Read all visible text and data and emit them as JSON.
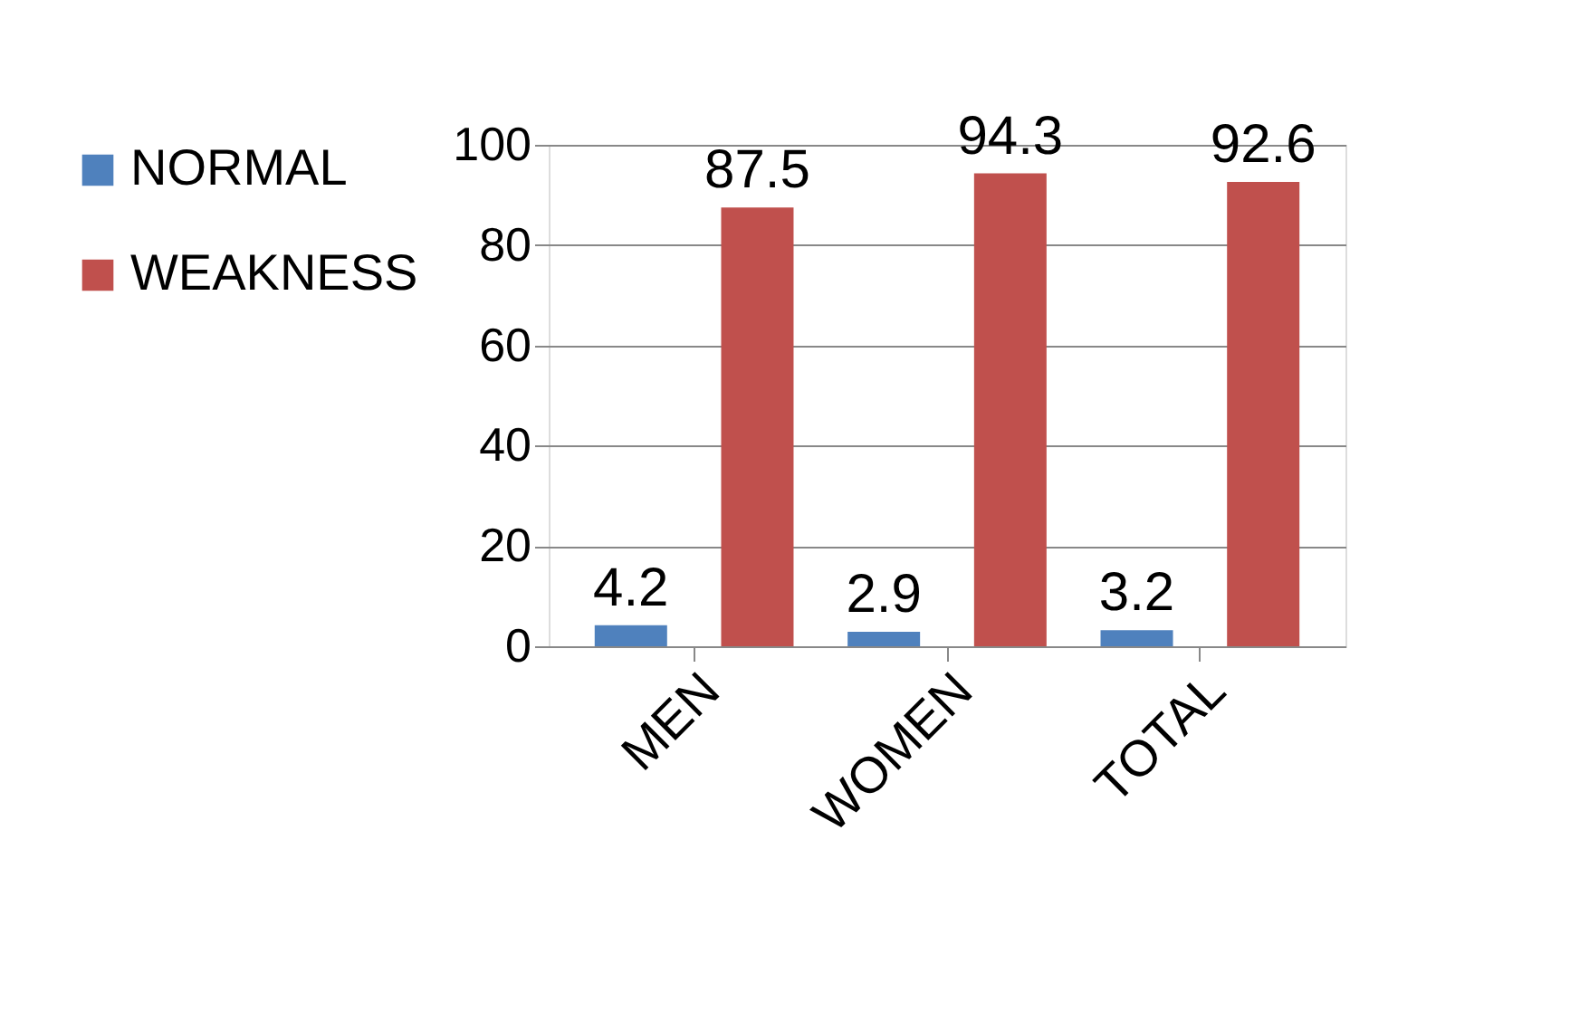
{
  "chart_data": {
    "type": "bar",
    "categories": [
      "MEN",
      "WOMEN",
      "TOTAL"
    ],
    "series": [
      {
        "name": "NORMAL",
        "color": "#4f81bd",
        "values": [
          4.2,
          2.9,
          3.2
        ]
      },
      {
        "name": "WEAKNESS",
        "color": "#c0504d",
        "values": [
          87.5,
          94.3,
          92.6
        ]
      }
    ],
    "ylim": [
      0,
      100
    ],
    "yticks": [
      0,
      20,
      40,
      60,
      80,
      100
    ],
    "grid": "y",
    "legend": "left",
    "data_labels": true
  }
}
